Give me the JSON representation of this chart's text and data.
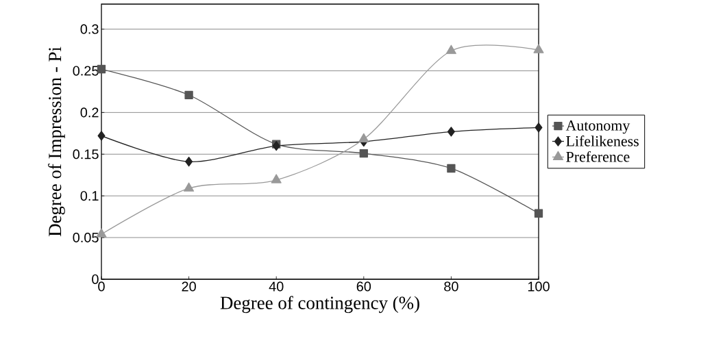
{
  "chart_data": {
    "type": "line",
    "xlabel": "Degree of contingency (%)",
    "ylabel": "Degree of Impression - Pi",
    "x": [
      0,
      20,
      40,
      60,
      80,
      100
    ],
    "series": [
      {
        "name": "Autonomy",
        "color": "#555555",
        "marker": "square",
        "values": [
          0.252,
          0.221,
          0.162,
          0.151,
          0.133,
          0.079
        ]
      },
      {
        "name": "Lifelikeness",
        "color": "#222222",
        "marker": "diamond",
        "values": [
          0.172,
          0.141,
          0.16,
          0.165,
          0.177,
          0.182
        ]
      },
      {
        "name": "Preference",
        "color": "#999999",
        "marker": "triangle",
        "values": [
          0.054,
          0.109,
          0.119,
          0.168,
          0.274,
          0.275
        ]
      }
    ],
    "xlim": [
      0,
      100
    ],
    "xticks": [
      0,
      20,
      40,
      60,
      80,
      100
    ],
    "ylim": [
      0,
      0.33
    ],
    "yticks": [
      0,
      0.05,
      0.1,
      0.15,
      0.2,
      0.25,
      0.3
    ],
    "grid": "y",
    "legend": "right"
  }
}
